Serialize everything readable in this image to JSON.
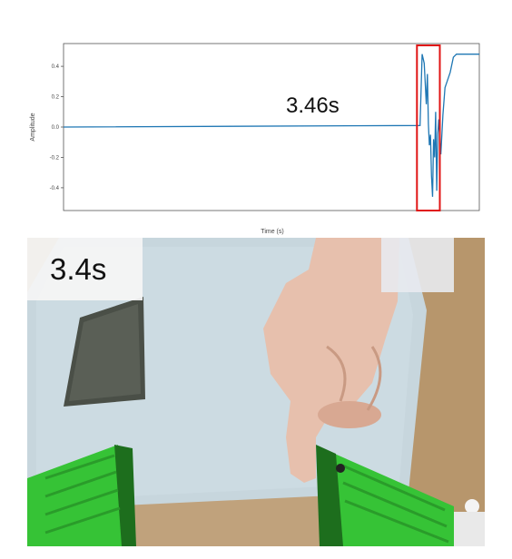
{
  "chart_data": {
    "type": "line",
    "xlabel": "Time (s)",
    "ylabel": "Amplitude",
    "ylim": [
      -0.55,
      0.55
    ],
    "yticks": [
      "0.4",
      "0.2",
      "0.0",
      "-0.2",
      "-0.4"
    ],
    "ytick_values": [
      0.4,
      0.2,
      0.0,
      -0.2,
      -0.4
    ],
    "xlim": [
      0,
      4.0
    ],
    "annotation": "3.46s",
    "highlight_range": [
      3.4,
      3.62
    ],
    "series": [
      {
        "color": "#1f77b4",
        "x": [
          0.0,
          3.43,
          3.45,
          3.47,
          3.49,
          3.5,
          3.51,
          3.52,
          3.53,
          3.54,
          3.55,
          3.56,
          3.57,
          3.58,
          3.59,
          3.6,
          3.61,
          3.63,
          3.65,
          3.67,
          3.69,
          3.72,
          3.75,
          3.78,
          4.0
        ],
        "y": [
          0.0,
          0.01,
          0.48,
          0.42,
          0.15,
          0.35,
          0.02,
          -0.12,
          -0.05,
          -0.32,
          -0.46,
          -0.08,
          -0.2,
          0.1,
          -0.42,
          -0.05,
          0.05,
          -0.18,
          0.08,
          0.26,
          0.3,
          0.36,
          0.46,
          0.48,
          0.48
        ]
      }
    ]
  },
  "video": {
    "timestamp": "3.4s",
    "colors": {
      "table": "#c0a27c",
      "board": "#c9d8df",
      "gripper": "#36c336",
      "hand": "#e7c0ad",
      "sponge": "#4b5048"
    }
  }
}
